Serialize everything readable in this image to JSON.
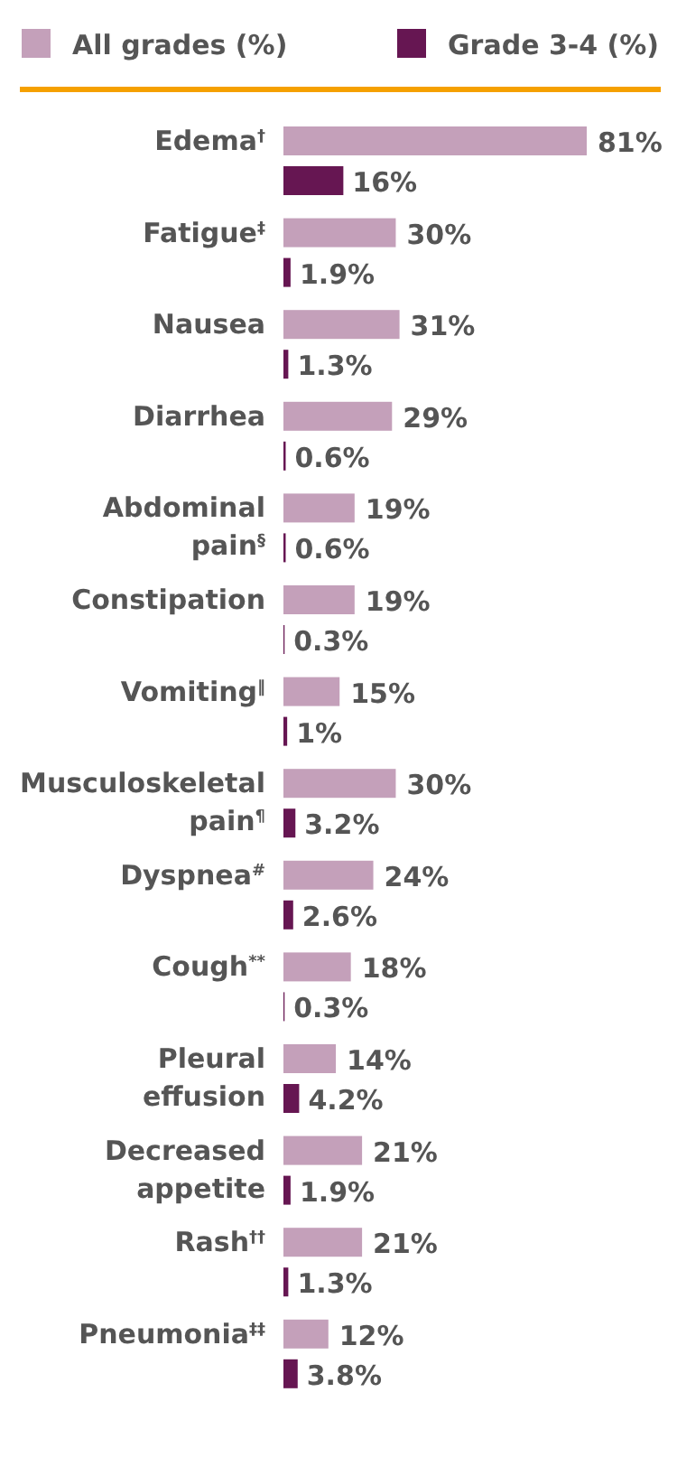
{
  "chart_data": {
    "type": "bar",
    "orientation": "horizontal",
    "legend": "top",
    "categories": [
      "Edema$^{†}$",
      "Fatigue$^{‡}$",
      "Nausea",
      "Diarrhea",
      "Abdominal pain$^{§}$",
      "Constipation",
      "Vomiting$^{‖}$",
      "Musculoskeletal pain$^{¶}$",
      "Dyspnea$^{#}$",
      "Cough$^{**}$",
      "Pleural effusion",
      "Decreased appetite",
      "Rash$^{††}$",
      "Pneumonia$^{‡‡}$"
    ],
    "series": [
      {
        "name": "All grades (%)",
        "color": "#c4a0ba",
        "values": [
          81,
          30,
          31,
          29,
          19,
          19,
          15,
          30,
          24,
          18,
          14,
          21,
          21,
          12
        ],
        "value_labels": [
          "81%",
          "30%",
          "31%",
          "29%",
          "19%",
          "19%",
          "15%",
          "30%",
          "24%",
          "18%",
          "14%",
          "21%",
          "21%",
          "12%"
        ]
      },
      {
        "name": "Grade 3-4 (%)",
        "color": "#661652",
        "values": [
          16,
          1.9,
          1.3,
          0.6,
          0.6,
          0.3,
          1,
          3.2,
          2.6,
          0.3,
          4.2,
          1.9,
          1.3,
          3.8
        ],
        "value_labels": [
          "16%",
          "1.9%",
          "1.3%",
          "0.6%",
          "0.6%",
          "0.3%",
          "1%",
          "3.2%",
          "2.6%",
          "0.3%",
          "4.2%",
          "1.9%",
          "1.3%",
          "3.8%"
        ]
      }
    ]
  }
}
